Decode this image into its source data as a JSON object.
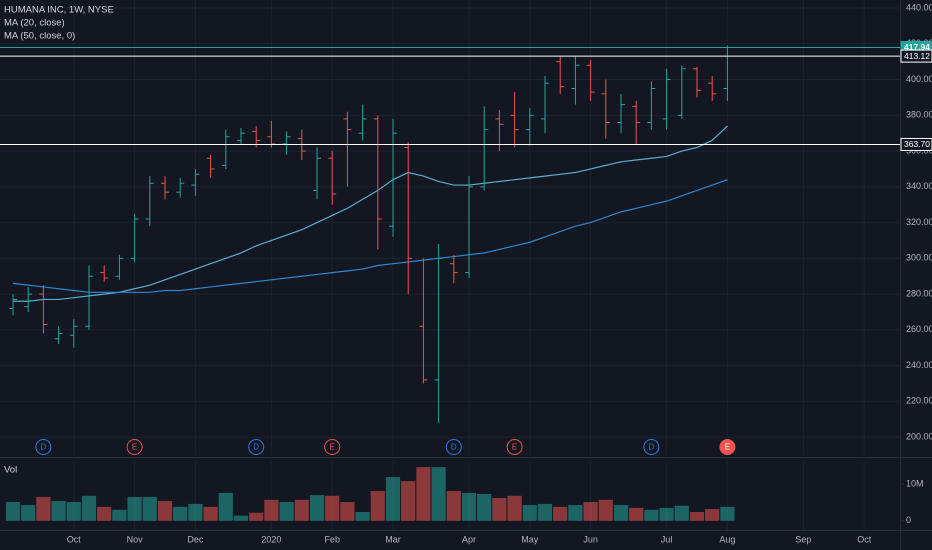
{
  "chart_data": [
    {
      "type": "ohlc",
      "title": "HUMANA INC, 1W, NYSE",
      "categories": [
        null,
        null,
        null,
        null,
        "Oct",
        null,
        null,
        null,
        "Nov",
        null,
        null,
        null,
        "Dec",
        null,
        null,
        null,
        null,
        "2020",
        null,
        null,
        null,
        "Feb",
        null,
        null,
        null,
        "Mar",
        null,
        null,
        null,
        null,
        "Apr",
        null,
        null,
        null,
        "May",
        null,
        null,
        null,
        "Jun",
        null,
        null,
        null,
        null,
        "Jul",
        null,
        null,
        null,
        "Aug",
        null,
        null,
        null,
        null,
        "Sep",
        null,
        null,
        null,
        "Oct",
        null,
        null
      ],
      "open": [
        272,
        273,
        280,
        255,
        257,
        262,
        292,
        290,
        300,
        322,
        342,
        337,
        341,
        356,
        352,
        366,
        371,
        368,
        364,
        367,
        338,
        356,
        378,
        370,
        378,
        318,
        362,
        262,
        232,
        297,
        292,
        340,
        378,
        380,
        372,
        378,
        410,
        395,
        408,
        392,
        376,
        385,
        376,
        378,
        380,
        406,
        398,
        395,
        null,
        null,
        null,
        null,
        null,
        null,
        null,
        null,
        null,
        null,
        null
      ],
      "high": [
        280,
        284,
        285,
        262,
        266,
        296,
        296,
        302,
        325,
        346,
        346,
        345,
        350,
        358,
        372,
        373,
        374,
        377,
        371,
        372,
        362,
        360,
        382,
        386,
        380,
        378,
        365,
        300,
        308,
        302,
        346,
        385,
        383,
        393,
        384,
        402,
        413,
        413,
        411,
        400,
        392,
        388,
        399,
        406,
        408,
        407,
        402,
        419,
        null,
        null,
        null,
        null,
        null,
        null,
        null,
        null,
        null,
        null,
        null
      ],
      "low": [
        268,
        270,
        258,
        252,
        250,
        260,
        287,
        288,
        298,
        318,
        333,
        334,
        335,
        345,
        350,
        364,
        362,
        362,
        358,
        355,
        333,
        330,
        340,
        366,
        305,
        312,
        280,
        230,
        208,
        286,
        289,
        338,
        360,
        362,
        363,
        370,
        392,
        386,
        388,
        367,
        370,
        364,
        372,
        372,
        378,
        390,
        388,
        388,
        null,
        null,
        null,
        null,
        null,
        null,
        null,
        null,
        null,
        null,
        null
      ],
      "close": [
        277,
        280,
        263,
        258,
        262,
        290,
        289,
        300,
        322,
        342,
        337,
        342,
        347,
        350,
        368,
        370,
        366,
        364,
        368,
        360,
        356,
        336,
        372,
        378,
        322,
        370,
        300,
        232,
        300,
        292,
        340,
        372,
        375,
        372,
        380,
        398,
        396,
        408,
        393,
        376,
        386,
        376,
        395,
        400,
        406,
        394,
        392,
        417.94,
        null,
        null,
        null,
        null,
        null,
        null,
        null,
        null,
        null,
        null,
        null
      ],
      "up_color": "#26a69a",
      "down_color": "#ef5350",
      "series": [
        {
          "name": "MA (20, close)",
          "color": "#5aaed0",
          "values": [
            276,
            276,
            277,
            277,
            278,
            279,
            280,
            281,
            283,
            285,
            288,
            291,
            294,
            297,
            300,
            303,
            307,
            310,
            313,
            316,
            320,
            324,
            328,
            333,
            338,
            344,
            348,
            346,
            343,
            341,
            341,
            342,
            343,
            344,
            345,
            346,
            347,
            348,
            350,
            352,
            354,
            355,
            356,
            357,
            360,
            362,
            366,
            374,
            null,
            null,
            null,
            null,
            null,
            null,
            null,
            null,
            null,
            null,
            null
          ]
        },
        {
          "name": "MA (50, close, 0)",
          "color": "#2f86d0",
          "values": [
            286,
            285,
            284,
            283,
            282,
            281,
            281,
            281,
            281,
            281,
            282,
            282,
            283,
            284,
            285,
            286,
            287,
            288,
            289,
            290,
            291,
            292,
            293,
            294,
            296,
            297,
            298,
            299,
            300,
            301,
            302,
            303,
            305,
            307,
            309,
            312,
            315,
            318,
            320,
            323,
            326,
            328,
            330,
            332,
            335,
            338,
            341,
            344,
            null,
            null,
            null,
            null,
            null,
            null,
            null,
            null,
            null,
            null,
            null
          ]
        }
      ],
      "ylim": [
        190,
        444.5
      ],
      "yticks": [
        {
          "value": 200,
          "label": "200.00"
        },
        {
          "value": 220,
          "label": "220.00"
        },
        {
          "value": 240,
          "label": "240.00"
        },
        {
          "value": 260,
          "label": "260.00"
        },
        {
          "value": 280,
          "label": "280.00"
        },
        {
          "value": 300,
          "label": "300.00"
        },
        {
          "value": 320,
          "label": "320.00"
        },
        {
          "value": 340,
          "label": "340.00"
        },
        {
          "value": 360,
          "label": "360.00"
        },
        {
          "value": 380,
          "label": "380.00"
        },
        {
          "value": 400,
          "label": "400.00"
        },
        {
          "value": 420,
          "label": "420.00"
        },
        {
          "value": 440,
          "label": "440.00"
        }
      ],
      "grid": true,
      "price_lines": [
        {
          "value": 417.94,
          "label": "417.94",
          "color": "#26a69a",
          "box": "filled"
        },
        {
          "value": 413.12,
          "label": "413.12",
          "color": "#ffffff",
          "box": "outline"
        },
        {
          "value": 363.7,
          "label": "363.70",
          "color": "#ffffff",
          "box": "outline"
        }
      ],
      "events": [
        {
          "x": 2,
          "label": "D",
          "color": "#2f7ae5",
          "fill": "none"
        },
        {
          "x": 8,
          "label": "E",
          "color": "#ef5350",
          "fill": "none"
        },
        {
          "x": 16,
          "label": "D",
          "color": "#2f7ae5",
          "fill": "none"
        },
        {
          "x": 21,
          "label": "E",
          "color": "#ef5350",
          "fill": "none"
        },
        {
          "x": 29,
          "label": "D",
          "color": "#2f7ae5",
          "fill": "none"
        },
        {
          "x": 33,
          "label": "E",
          "color": "#ef5350",
          "fill": "none"
        },
        {
          "x": 42,
          "label": "D",
          "color": "#2f7ae5",
          "fill": "none"
        },
        {
          "x": 47,
          "label": "E",
          "color": "#ef5350",
          "fill": "#ef5350"
        }
      ]
    },
    {
      "type": "bar",
      "title": "Vol",
      "values": [
        5100000,
        4300000,
        6500000,
        5400000,
        5100000,
        6800000,
        3800000,
        3000000,
        6500000,
        6500000,
        5400000,
        3800000,
        4600000,
        3800000,
        7600000,
        1400000,
        2200000,
        5700000,
        5100000,
        5700000,
        7000000,
        6800000,
        5100000,
        2400000,
        8100000,
        11900000,
        10800000,
        14600000,
        14600000,
        8100000,
        7600000,
        7300000,
        6200000,
        6800000,
        4300000,
        4600000,
        3800000,
        4300000,
        5100000,
        5700000,
        4300000,
        3500000,
        3000000,
        3500000,
        4100000,
        2400000,
        3200000,
        3800000,
        null,
        null,
        null,
        null,
        null,
        null,
        null,
        null,
        null,
        null,
        null
      ],
      "opacity": 0.55,
      "ylim": [
        -2500000,
        16000000
      ],
      "yticks": [
        0,
        {
          "value": 10000000,
          "label": "10M"
        }
      ]
    }
  ]
}
